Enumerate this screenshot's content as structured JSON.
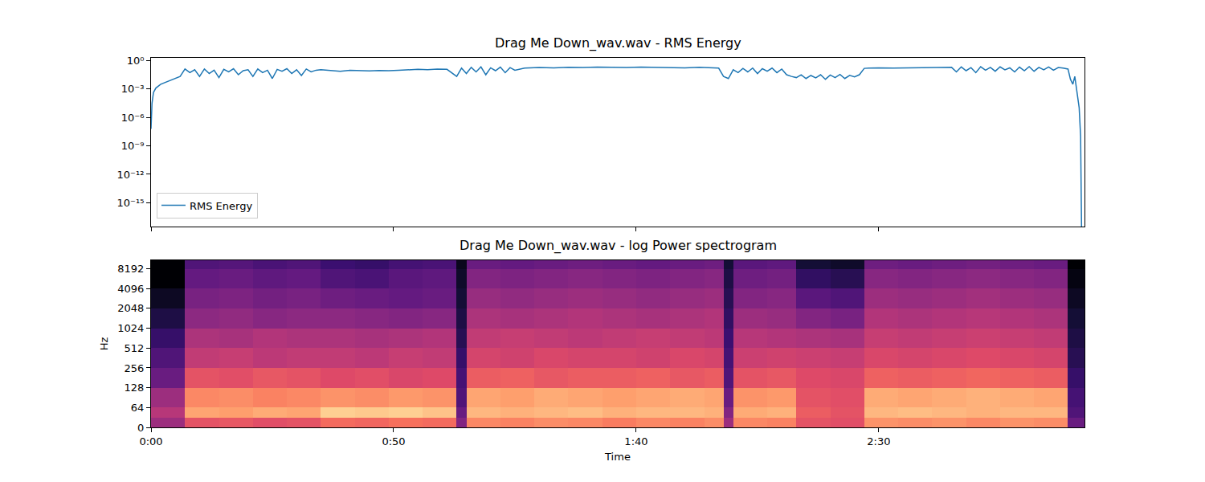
{
  "chart_data": [
    {
      "type": "line",
      "title": "Drag Me Down_wav.wav - RMS Energy",
      "x": [
        0,
        0.2,
        0.5,
        1,
        2,
        3,
        4,
        5,
        6,
        7,
        8,
        9,
        10,
        11,
        12,
        13,
        14,
        15,
        16,
        17,
        18,
        19,
        20,
        21,
        22,
        23,
        24,
        25,
        26,
        27,
        28,
        29,
        30,
        31,
        32,
        33,
        34,
        35,
        37,
        39,
        41,
        43,
        45,
        47,
        49,
        51,
        53,
        55,
        57,
        59,
        61,
        63,
        64,
        65,
        66,
        67,
        68,
        69,
        70,
        71,
        72,
        73,
        74,
        75,
        77,
        80,
        83,
        86,
        89,
        92,
        95,
        98,
        101,
        104,
        107,
        110,
        113,
        116,
        117,
        118,
        119,
        120,
        121,
        122,
        123,
        124,
        125,
        126,
        127,
        128,
        129,
        130,
        131,
        132,
        133,
        134,
        135,
        136,
        137,
        138,
        139,
        140,
        141,
        142,
        143,
        144,
        145,
        146,
        147,
        148,
        150,
        153,
        156,
        159,
        162,
        165,
        166,
        167,
        168,
        169,
        170,
        171,
        172,
        173,
        174,
        175,
        176,
        177,
        178,
        179,
        180,
        181,
        182,
        183,
        184,
        185,
        186,
        187,
        188,
        189,
        189.5,
        190,
        190.4,
        190.8,
        191.3,
        191.6,
        191.8
      ],
      "series": [
        {
          "name": "RMS Energy",
          "color": "#1f77b4",
          "values": [
            6e-08,
            3e-05,
            0.0004,
            0.0012,
            0.003,
            0.005,
            0.008,
            0.012,
            0.02,
            0.12,
            0.05,
            0.1,
            0.02,
            0.12,
            0.04,
            0.09,
            0.015,
            0.11,
            0.06,
            0.13,
            0.03,
            0.08,
            0.1,
            0.02,
            0.12,
            0.05,
            0.09,
            0.012,
            0.11,
            0.07,
            0.13,
            0.04,
            0.1,
            0.025,
            0.12,
            0.06,
            0.09,
            0.1,
            0.08,
            0.07,
            0.09,
            0.08,
            0.075,
            0.085,
            0.08,
            0.09,
            0.1,
            0.11,
            0.1,
            0.12,
            0.11,
            0.02,
            0.15,
            0.04,
            0.18,
            0.06,
            0.2,
            0.03,
            0.16,
            0.08,
            0.19,
            0.05,
            0.17,
            0.09,
            0.15,
            0.17,
            0.16,
            0.18,
            0.17,
            0.19,
            0.18,
            0.17,
            0.19,
            0.18,
            0.17,
            0.16,
            0.18,
            0.17,
            0.15,
            0.02,
            0.012,
            0.1,
            0.05,
            0.14,
            0.06,
            0.15,
            0.04,
            0.13,
            0.07,
            0.15,
            0.05,
            0.12,
            0.03,
            0.02,
            0.015,
            0.03,
            0.012,
            0.025,
            0.014,
            0.03,
            0.01,
            0.028,
            0.015,
            0.032,
            0.012,
            0.026,
            0.018,
            0.03,
            0.14,
            0.15,
            0.16,
            0.15,
            0.16,
            0.17,
            0.16,
            0.18,
            0.06,
            0.2,
            0.08,
            0.17,
            0.05,
            0.21,
            0.09,
            0.18,
            0.07,
            0.2,
            0.1,
            0.16,
            0.06,
            0.19,
            0.08,
            0.21,
            0.07,
            0.18,
            0.1,
            0.2,
            0.09,
            0.17,
            0.15,
            0.12,
            0.01,
            0.003,
            0.02,
            0.001,
            1e-05,
            1e-08,
            1e-18
          ]
        }
      ],
      "xlim": [
        0,
        192.4
      ],
      "xticks": [
        0,
        50,
        100,
        150
      ],
      "ylim": [
        3.2e-18,
        1.8
      ],
      "yticks": [
        {
          "value": 1,
          "label": "10⁰"
        },
        {
          "value": 0.001,
          "label": "10⁻³"
        },
        {
          "value": 1e-06,
          "label": "10⁻⁶"
        },
        {
          "value": 1e-09,
          "label": "10⁻⁹"
        },
        {
          "value": 1e-12,
          "label": "10⁻¹²"
        },
        {
          "value": 1e-15,
          "label": "10⁻¹⁵"
        }
      ],
      "log": "y",
      "legend": "lower left",
      "tick_labels": "y",
      "grid": false
    },
    {
      "type": "heatmap",
      "title": "Drag Me Down_wav.wav - log Power spectrogram",
      "x_label": "Time",
      "y_label": "Hz",
      "time_edges": [
        0,
        7,
        14,
        21,
        28,
        35,
        42,
        49,
        56,
        63,
        65,
        72,
        79,
        86,
        93,
        100,
        107,
        114,
        118,
        120,
        127,
        133,
        140,
        147,
        154,
        161,
        168,
        175,
        182,
        189,
        192.4
      ],
      "frequency_edges": [
        0,
        32,
        64,
        128,
        256,
        512,
        1024,
        2048,
        4096,
        8192,
        11025
      ],
      "cells": [
        [
          -45,
          -30,
          -29,
          -31,
          -30,
          -25,
          -26,
          -24,
          -25,
          -50,
          -20,
          -21,
          -19,
          -20,
          -22,
          -20,
          -21,
          -19,
          -45,
          -20,
          -21,
          -30,
          -31,
          -18,
          -19,
          -18,
          -20,
          -18,
          -19,
          -55
        ],
        [
          -40,
          -15,
          -16,
          -14,
          -15,
          -8,
          -9,
          -8,
          -10,
          -55,
          -12,
          -13,
          -12,
          -11,
          -13,
          -12,
          -12,
          -13,
          -50,
          -14,
          -13,
          -28,
          -30,
          -12,
          -11,
          -12,
          -13,
          -12,
          -12,
          -60
        ],
        [
          -45,
          -20,
          -19,
          -21,
          -20,
          -18,
          -19,
          -17,
          -18,
          -60,
          -15,
          -16,
          -14,
          -15,
          -16,
          -15,
          -14,
          -15,
          -55,
          -18,
          -17,
          -30,
          -31,
          -14,
          -15,
          -14,
          -13,
          -14,
          -15,
          -62
        ],
        [
          -55,
          -30,
          -31,
          -29,
          -30,
          -32,
          -31,
          -33,
          -32,
          -62,
          -28,
          -27,
          -29,
          -28,
          -28,
          -27,
          -29,
          -28,
          -60,
          -30,
          -29,
          -32,
          -33,
          -27,
          -28,
          -27,
          -26,
          -27,
          -28,
          -65
        ],
        [
          -60,
          -38,
          -37,
          -39,
          -38,
          -38,
          -39,
          -37,
          -38,
          -65,
          -34,
          -35,
          -33,
          -34,
          -34,
          -35,
          -33,
          -34,
          -62,
          -36,
          -35,
          -36,
          -37,
          -33,
          -34,
          -33,
          -32,
          -33,
          -34,
          -68
        ],
        [
          -65,
          -42,
          -43,
          -41,
          -42,
          -42,
          -43,
          -42,
          -41,
          -68,
          -38,
          -37,
          -38,
          -39,
          -38,
          -37,
          -38,
          -39,
          -64,
          -40,
          -41,
          -42,
          -43,
          -37,
          -38,
          -37,
          -36,
          -37,
          -38,
          -70
        ],
        [
          -70,
          -48,
          -47,
          -49,
          -48,
          -48,
          -49,
          -50,
          -49,
          -70,
          -42,
          -43,
          -42,
          -41,
          -42,
          -43,
          -42,
          -41,
          -66,
          -45,
          -46,
          -50,
          -52,
          -41,
          -42,
          -41,
          -40,
          -41,
          -42,
          -72
        ],
        [
          -75,
          -52,
          -51,
          -53,
          -52,
          -54,
          -55,
          -56,
          -55,
          -72,
          -46,
          -47,
          -46,
          -45,
          -46,
          -47,
          -46,
          -45,
          -68,
          -50,
          -49,
          -58,
          -60,
          -45,
          -46,
          -45,
          -44,
          -45,
          -46,
          -75
        ],
        [
          -80,
          -56,
          -55,
          -57,
          -56,
          -60,
          -61,
          -58,
          -57,
          -74,
          -50,
          -51,
          -50,
          -49,
          -50,
          -51,
          -50,
          -49,
          -70,
          -54,
          -53,
          -66,
          -68,
          -49,
          -50,
          -49,
          -48,
          -49,
          -50,
          -78
        ],
        [
          -80,
          -60,
          -59,
          -61,
          -60,
          -64,
          -65,
          -62,
          -61,
          -76,
          -55,
          -56,
          -55,
          -54,
          -55,
          -56,
          -55,
          -54,
          -72,
          -58,
          -57,
          -72,
          -74,
          -54,
          -55,
          -54,
          -53,
          -54,
          -55,
          -80
        ]
      ],
      "clim": [
        -80,
        0
      ],
      "xlim": [
        0,
        192.4
      ],
      "xticks": [
        {
          "value": 0,
          "label": "0:00"
        },
        {
          "value": 50,
          "label": "0:50"
        },
        {
          "value": 100,
          "label": "1:40"
        },
        {
          "value": 150,
          "label": "2:30"
        }
      ],
      "ylim": [
        0,
        11025
      ],
      "yticks": [
        0,
        64,
        128,
        256,
        512,
        1024,
        2048,
        4096,
        8192
      ],
      "linear_threshold": 64,
      "log": "y",
      "grid": false
    }
  ]
}
